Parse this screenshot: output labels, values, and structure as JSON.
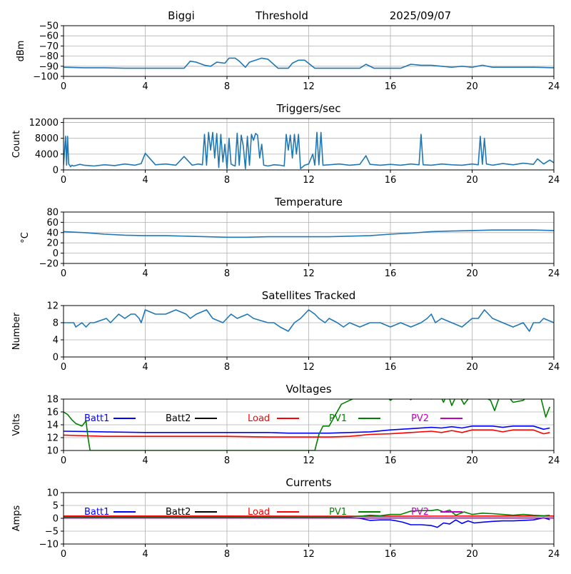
{
  "header": {
    "station": "Biggi",
    "mode": "Threshold",
    "date": "2025/09/07"
  },
  "colors": {
    "series": "#1f77b4",
    "grid": "#b0b0b0",
    "batt1": "#0000ff",
    "batt2": "#000000",
    "load": "#ff0000",
    "pv1": "#008000",
    "pv2": "#bf00bf"
  },
  "chart_data": [
    {
      "type": "line",
      "title": "",
      "xlabel": "",
      "ylabel": "dBm",
      "xlim": [
        0,
        24
      ],
      "ylim": [
        -100,
        -50
      ],
      "xticks": [
        0,
        4,
        8,
        12,
        16,
        20,
        24
      ],
      "yticks": [
        -100,
        -90,
        -80,
        -70,
        -60,
        -50
      ],
      "grid": true,
      "series": [
        {
          "x": [
            0,
            1,
            2,
            3,
            4,
            5,
            5.9,
            6.2,
            6.5,
            6.9,
            7.2,
            7.5,
            7.9,
            8.1,
            8.4,
            8.6,
            8.9,
            9.1,
            9.4,
            9.7,
            10,
            10.5,
            11,
            11.2,
            11.5,
            11.8,
            12.3,
            12.6,
            13,
            13.5,
            14,
            14.5,
            14.8,
            15.2,
            15.6,
            16,
            16.5,
            17,
            17.5,
            18,
            18.5,
            19,
            19.5,
            20,
            20.5,
            21,
            22,
            23,
            24
          ],
          "y": [
            -91,
            -91.5,
            -91.5,
            -92,
            -92,
            -92,
            -92,
            -85,
            -86,
            -89,
            -90,
            -86,
            -87,
            -82,
            -82,
            -85,
            -91,
            -86,
            -84,
            -82,
            -83,
            -92,
            -92,
            -87,
            -84,
            -84,
            -92,
            -92,
            -92,
            -92,
            -92,
            -92,
            -88,
            -92,
            -92,
            -92,
            -92,
            -88,
            -89,
            -89,
            -90,
            -91,
            -90,
            -91,
            -89,
            -91,
            -91,
            -91,
            -91.5
          ]
        }
      ]
    },
    {
      "type": "line",
      "title": "Triggers/sec",
      "xlabel": "",
      "ylabel": "Count",
      "xlim": [
        0,
        24
      ],
      "ylim": [
        0,
        13000
      ],
      "xticks": [
        0,
        4,
        8,
        12,
        16,
        20,
        24
      ],
      "yticks": [
        0,
        4000,
        8000,
        12000
      ],
      "grid": true,
      "series": [
        {
          "x": [
            0,
            0.1,
            0.15,
            0.2,
            0.25,
            0.3,
            0.35,
            0.4,
            0.5,
            0.8,
            1,
            1.5,
            2,
            2.5,
            3,
            3.5,
            3.8,
            4,
            4.5,
            5,
            5.5,
            5.9,
            6.3,
            6.6,
            6.8,
            6.9,
            7,
            7.1,
            7.2,
            7.3,
            7.4,
            7.5,
            7.6,
            7.7,
            7.8,
            7.9,
            8,
            8.1,
            8.2,
            8.3,
            8.4,
            8.5,
            8.6,
            8.7,
            8.8,
            8.9,
            9,
            9.1,
            9.2,
            9.3,
            9.4,
            9.5,
            9.6,
            9.7,
            9.8,
            10,
            10.3,
            10.6,
            10.8,
            10.9,
            11,
            11.1,
            11.2,
            11.3,
            11.4,
            11.5,
            11.6,
            11.8,
            12,
            12.2,
            12.3,
            12.4,
            12.5,
            12.6,
            12.7,
            13,
            13.5,
            14,
            14.5,
            14.8,
            15,
            15.5,
            16,
            16.5,
            17,
            17.4,
            17.5,
            17.6,
            18,
            18.5,
            19,
            19.5,
            20,
            20.3,
            20.4,
            20.5,
            20.6,
            20.7,
            21,
            21.5,
            22,
            22.5,
            23,
            23.2,
            23.5,
            23.8,
            24
          ],
          "y": [
            1200,
            8500,
            1200,
            8500,
            1500,
            1200,
            800,
            1200,
            1000,
            1400,
            1200,
            1000,
            1300,
            1100,
            1500,
            1200,
            1600,
            4200,
            1300,
            1500,
            1200,
            3400,
            1200,
            1500,
            1300,
            9000,
            1200,
            9500,
            5000,
            9500,
            3000,
            9200,
            600,
            9000,
            2000,
            6500,
            300,
            8000,
            1500,
            1200,
            1000,
            9300,
            1200,
            8800,
            6000,
            300,
            8500,
            1200,
            9000,
            7500,
            9200,
            8800,
            3000,
            6500,
            1200,
            1000,
            1300,
            1200,
            1000,
            9000,
            5000,
            8800,
            3000,
            9000,
            4000,
            9000,
            300,
            1200,
            1500,
            4000,
            1200,
            9500,
            1300,
            9500,
            1200,
            1300,
            1500,
            1200,
            1400,
            3600,
            1400,
            1200,
            1400,
            1200,
            1500,
            1300,
            9000,
            1300,
            1200,
            1500,
            1300,
            1200,
            1500,
            1300,
            8500,
            1400,
            8000,
            1500,
            1200,
            1600,
            1300,
            1700,
            1400,
            2800,
            1500,
            2500,
            1800
          ]
        }
      ]
    },
    {
      "type": "line",
      "title": "Temperature",
      "xlabel": "",
      "ylabel": "°C",
      "xlim": [
        0,
        24
      ],
      "ylim": [
        -20,
        80
      ],
      "xticks": [
        0,
        4,
        8,
        12,
        16,
        20,
        24
      ],
      "yticks": [
        -20,
        0,
        20,
        40,
        60,
        80
      ],
      "grid": true,
      "series": [
        {
          "x": [
            0,
            1,
            2,
            3,
            4,
            5,
            6,
            7,
            8,
            9,
            10,
            11,
            12,
            13,
            14,
            15,
            16,
            17,
            18,
            19,
            20,
            21,
            22,
            23,
            24
          ],
          "y": [
            42,
            40,
            37,
            35,
            34,
            34,
            33,
            32,
            31,
            31,
            32,
            32,
            32,
            32,
            33,
            34,
            37,
            39,
            42,
            43,
            44,
            45,
            45,
            45,
            44
          ]
        }
      ]
    },
    {
      "type": "line",
      "title": "Satellites Tracked",
      "xlabel": "",
      "ylabel": "Number",
      "xlim": [
        0,
        24
      ],
      "ylim": [
        0,
        12
      ],
      "xticks": [
        0,
        4,
        8,
        12,
        16,
        20,
        24
      ],
      "yticks": [
        0,
        4,
        8,
        12
      ],
      "grid": true,
      "series": [
        {
          "x": [
            0,
            0.5,
            0.6,
            0.9,
            1.1,
            1.3,
            1.5,
            2.1,
            2.3,
            2.7,
            3,
            3.3,
            3.5,
            3.7,
            3.8,
            4,
            4.5,
            5,
            5.5,
            6,
            6.2,
            6.5,
            7,
            7.3,
            7.8,
            8,
            8.2,
            8.5,
            9,
            9.3,
            10,
            10.3,
            10.6,
            11,
            11.3,
            11.6,
            12,
            12.3,
            12.5,
            12.8,
            13,
            13.4,
            13.7,
            14,
            14.5,
            15,
            15.5,
            16,
            16.5,
            17,
            17.5,
            17.8,
            18,
            18.2,
            18.5,
            19,
            19.5,
            20,
            20.3,
            20.6,
            21,
            21.5,
            22,
            22.5,
            22.8,
            23,
            23.3,
            23.5,
            24
          ],
          "y": [
            8,
            8,
            7,
            8,
            7,
            8,
            8,
            9,
            8,
            10,
            9,
            10,
            10,
            9,
            8,
            11,
            10,
            10,
            11,
            10,
            9,
            10,
            11,
            9,
            8,
            9,
            10,
            9,
            10,
            9,
            8,
            8,
            7,
            6,
            8,
            9,
            11,
            10,
            9,
            8,
            9,
            8,
            7,
            8,
            7,
            8,
            8,
            7,
            8,
            7,
            8,
            9,
            10,
            8,
            9,
            8,
            7,
            9,
            9,
            11,
            9,
            8,
            7,
            8,
            6,
            8,
            8,
            9,
            8
          ]
        }
      ]
    },
    {
      "type": "line",
      "title": "Voltages",
      "xlabel": "",
      "ylabel": "Volts",
      "xlim": [
        0,
        24
      ],
      "ylim": [
        10,
        18
      ],
      "xticks": [
        0,
        4,
        8,
        12,
        16,
        20,
        24
      ],
      "yticks": [
        10,
        12,
        14,
        16,
        18
      ],
      "grid": true,
      "legend": "top",
      "series": [
        {
          "name": "Batt1",
          "x": [
            0,
            2,
            4,
            6,
            8,
            10,
            11,
            12,
            13,
            14,
            15,
            16,
            17,
            18,
            18.5,
            19,
            19.5,
            20,
            21,
            21.5,
            22,
            23,
            23.5,
            23.8
          ],
          "y": [
            13,
            12.9,
            12.8,
            12.8,
            12.8,
            12.8,
            12.7,
            12.7,
            12.7,
            12.8,
            12.9,
            13.2,
            13.4,
            13.6,
            13.5,
            13.7,
            13.5,
            13.8,
            13.8,
            13.6,
            13.8,
            13.8,
            13.3,
            13.5
          ]
        },
        {
          "name": "Batt2",
          "x": [],
          "y": []
        },
        {
          "name": "Load",
          "x": [
            0,
            2,
            4,
            6,
            8,
            10,
            11,
            12,
            13,
            14,
            15,
            16,
            17,
            18,
            18.5,
            19,
            19.5,
            20,
            21,
            21.5,
            22,
            23,
            23.5,
            23.8
          ],
          "y": [
            12.4,
            12.2,
            12.2,
            12.2,
            12.2,
            12.1,
            12.1,
            12.1,
            12.1,
            12.2,
            12.5,
            12.6,
            12.8,
            13,
            12.8,
            13.1,
            12.8,
            13.2,
            13.2,
            12.9,
            13.2,
            13.2,
            12.6,
            12.8
          ]
        },
        {
          "name": "PV1",
          "x": [
            0,
            0.2,
            0.4,
            0.6,
            0.9,
            1.1,
            1.2,
            1.3,
            12.3,
            12.5,
            12.7,
            13,
            13.3,
            13.6,
            14,
            14.5,
            15,
            15.5,
            16,
            16.5,
            17,
            17.5,
            18,
            18.3,
            18.6,
            18.8,
            19,
            19.3,
            19.6,
            20,
            20.5,
            20.9,
            21.1,
            21.4,
            21.6,
            22,
            22.5,
            23,
            23.3,
            23.6,
            23.8
          ],
          "y": [
            16,
            15.6,
            14.8,
            14.2,
            13.8,
            14.6,
            12,
            10,
            10,
            12.5,
            13.8,
            13.8,
            15.5,
            17.2,
            17.8,
            18.5,
            18.2,
            19.5,
            17.8,
            19,
            17.9,
            19.2,
            18,
            19.5,
            17.5,
            19,
            17,
            19,
            17.2,
            18.8,
            18.5,
            17.8,
            16.2,
            19,
            19,
            17.5,
            17.8,
            19.5,
            19,
            15.2,
            16.8
          ]
        },
        {
          "name": "PV2",
          "x": [],
          "y": []
        }
      ]
    },
    {
      "type": "line",
      "title": "Currents",
      "xlabel": "",
      "ylabel": "Amps",
      "xlim": [
        0,
        24
      ],
      "ylim": [
        -10,
        10
      ],
      "xticks": [
        0,
        4,
        8,
        12,
        16,
        20,
        24
      ],
      "yticks": [
        -10,
        -5,
        0,
        5,
        10
      ],
      "grid": true,
      "legend": "top",
      "series": [
        {
          "name": "Batt1",
          "x": [
            0,
            2,
            4,
            6,
            8,
            10,
            12,
            13,
            14,
            14.5,
            15,
            15.5,
            16,
            16.3,
            16.6,
            17,
            17.5,
            18,
            18.3,
            18.6,
            18.9,
            19.2,
            19.5,
            19.8,
            20.1,
            20.5,
            21,
            21.5,
            22,
            22.5,
            23,
            23.5,
            23.8
          ],
          "y": [
            0.2,
            0.2,
            0.3,
            0.3,
            0.3,
            0.3,
            0.3,
            0.3,
            0.2,
            0,
            -0.8,
            -0.6,
            -0.6,
            -1,
            -1.5,
            -2.5,
            -2.5,
            -2.8,
            -3.5,
            -1.8,
            -2.2,
            -0.6,
            -2,
            -1,
            -1.8,
            -1.5,
            -1.2,
            -1,
            -1,
            -0.8,
            -0.6,
            0.2,
            -0.5
          ]
        },
        {
          "name": "Batt2",
          "x": [],
          "y": []
        },
        {
          "name": "Load",
          "x": [
            0,
            4,
            8,
            12,
            16,
            20,
            24
          ],
          "y": [
            0.9,
            0.9,
            0.9,
            0.8,
            0.8,
            0.9,
            0.9
          ]
        },
        {
          "name": "PV1",
          "x": [
            0,
            2,
            4,
            6,
            8,
            10,
            12,
            13,
            14,
            14.5,
            15,
            15.5,
            16,
            16.5,
            17,
            17.5,
            18,
            18.3,
            18.6,
            18.9,
            19.2,
            19.6,
            20,
            20.5,
            21,
            21.5,
            22,
            22.5,
            23,
            23.5,
            23.8
          ],
          "y": [
            0.5,
            0.5,
            0.5,
            0.5,
            0.5,
            0.5,
            0.5,
            0.5,
            0.6,
            0.8,
            1.2,
            1,
            1.5,
            1.5,
            2.8,
            3,
            3,
            3.4,
            2.5,
            3.2,
            1.2,
            2.5,
            1.5,
            2,
            1.8,
            1.5,
            1.2,
            1.5,
            1.2,
            1,
            1.2
          ]
        },
        {
          "name": "PV2",
          "x": [
            0,
            4,
            8,
            12,
            16,
            20,
            24
          ],
          "y": [
            0.1,
            0.1,
            0.1,
            0.1,
            0.1,
            0.1,
            0.1
          ]
        }
      ]
    }
  ]
}
